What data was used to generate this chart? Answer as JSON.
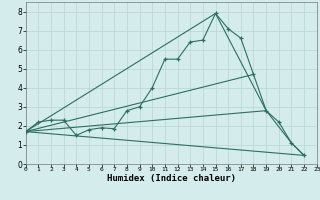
{
  "title": "",
  "xlabel": "Humidex (Indice chaleur)",
  "background_color": "#d4ecec",
  "grid_color": "#b8d4d4",
  "line_color": "#2a7060",
  "xlim": [
    0,
    23
  ],
  "ylim": [
    0,
    8.5
  ],
  "xticks": [
    0,
    1,
    2,
    3,
    4,
    5,
    6,
    7,
    8,
    9,
    10,
    11,
    12,
    13,
    14,
    15,
    16,
    17,
    18,
    19,
    20,
    21,
    22,
    23
  ],
  "yticks": [
    0,
    1,
    2,
    3,
    4,
    5,
    6,
    7,
    8
  ],
  "line1_x": [
    0,
    1,
    2,
    3,
    4,
    5,
    6,
    7,
    8,
    9,
    10,
    11,
    12,
    13,
    14,
    15,
    16,
    17,
    18,
    19,
    20,
    21,
    22
  ],
  "line1_y": [
    1.7,
    2.2,
    2.3,
    2.3,
    1.5,
    1.8,
    1.9,
    1.85,
    2.8,
    3.0,
    4.0,
    5.5,
    5.5,
    6.4,
    6.5,
    7.9,
    7.1,
    6.6,
    4.7,
    2.8,
    2.2,
    1.1,
    0.45
  ],
  "line2_x": [
    0,
    15,
    19,
    21,
    22
  ],
  "line2_y": [
    1.7,
    7.9,
    2.8,
    1.1,
    0.45
  ],
  "line3_x": [
    0,
    22
  ],
  "line3_y": [
    1.7,
    0.45
  ],
  "line4_x": [
    0,
    18
  ],
  "line4_y": [
    1.7,
    4.7
  ],
  "line5_x": [
    0,
    19
  ],
  "line5_y": [
    1.7,
    2.8
  ]
}
